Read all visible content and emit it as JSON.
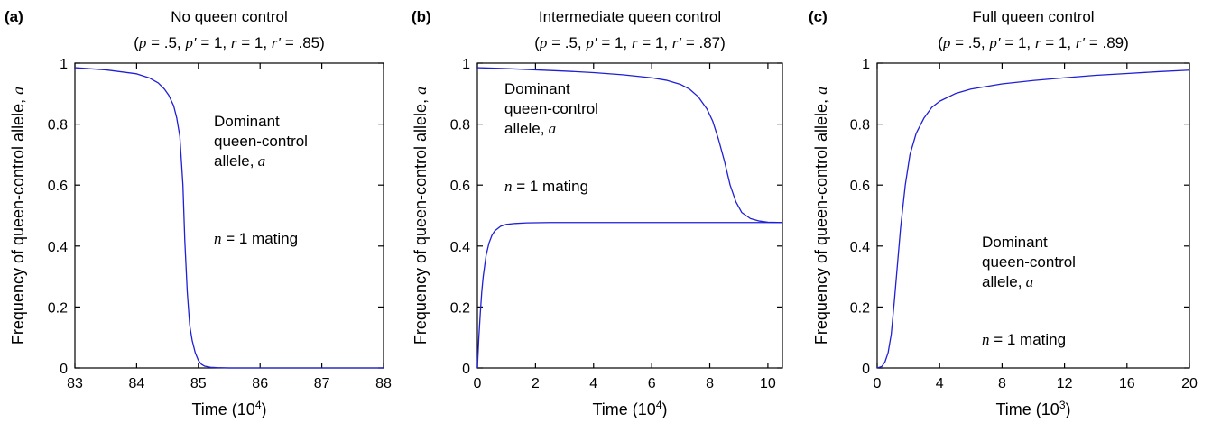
{
  "line_color": "#1f1fd6",
  "chart_data": [
    {
      "type": "line",
      "panel_label": "(a)",
      "title": "No queen control",
      "params": {
        "p": ".5",
        "p_prime": "1",
        "r": "1",
        "r_prime": ".85"
      },
      "xlabel": "Time (10",
      "xlabel_exp": "4",
      "ylabel": "Frequency of queen-control allele,",
      "ylabel_var": "a",
      "xlim": [
        83,
        88
      ],
      "ylim": [
        0,
        1
      ],
      "xticks": [
        83,
        84,
        85,
        86,
        87,
        88
      ],
      "yticks": [
        0,
        0.2,
        0.4,
        0.6,
        0.8,
        1
      ],
      "ytick_labels": [
        "0",
        "0.2",
        "0.4",
        "0.6",
        "0.8",
        "1"
      ],
      "annotation": [
        "Dominant",
        "queen-control",
        "allele,"
      ],
      "annotation_var": "a",
      "mating_label": "= 1 mating",
      "mating_var": "n",
      "series": [
        {
          "x": [
            83,
            83.5,
            84,
            84.2,
            84.35,
            84.45,
            84.52,
            84.6,
            84.65,
            84.7,
            84.75,
            84.78,
            84.82,
            84.86,
            84.9,
            84.95,
            85.0,
            85.05,
            85.1,
            85.2,
            85.3,
            85.5,
            86,
            87,
            88
          ],
          "y": [
            0.985,
            0.978,
            0.965,
            0.952,
            0.935,
            0.915,
            0.895,
            0.86,
            0.82,
            0.76,
            0.6,
            0.42,
            0.25,
            0.14,
            0.09,
            0.05,
            0.025,
            0.012,
            0.006,
            0.002,
            0.001,
            0,
            0,
            0,
            0
          ]
        }
      ]
    },
    {
      "type": "line",
      "panel_label": "(b)",
      "title": "Intermediate queen control",
      "params": {
        "p": ".5",
        "p_prime": "1",
        "r": "1",
        "r_prime": ".87"
      },
      "xlabel": "Time (10",
      "xlabel_exp": "4",
      "ylabel": "Frequency of queen-control allele,",
      "ylabel_var": "a",
      "xlim": [
        0,
        10.5
      ],
      "ylim": [
        0,
        1
      ],
      "xticks": [
        0,
        2,
        4,
        6,
        8,
        10
      ],
      "yticks": [
        0,
        0.2,
        0.4,
        0.6,
        0.8,
        1
      ],
      "ytick_labels": [
        "0",
        "0.2",
        "0.4",
        "0.6",
        "0.8",
        "1"
      ],
      "annotation": [
        "Dominant",
        "queen-control",
        "allele,"
      ],
      "annotation_var": "a",
      "mating_label": "= 1 mating",
      "mating_var": "n",
      "series": [
        {
          "x": [
            0,
            1,
            2,
            3,
            4,
            5,
            6,
            6.5,
            7,
            7.3,
            7.6,
            7.9,
            8.1,
            8.3,
            8.5,
            8.7,
            8.9,
            9.1,
            9.4,
            9.7,
            10,
            10.5
          ],
          "y": [
            0.985,
            0.982,
            0.978,
            0.974,
            0.969,
            0.962,
            0.952,
            0.944,
            0.93,
            0.915,
            0.89,
            0.85,
            0.81,
            0.75,
            0.68,
            0.6,
            0.545,
            0.51,
            0.49,
            0.482,
            0.478,
            0.477
          ]
        },
        {
          "x": [
            0,
            0.05,
            0.1,
            0.15,
            0.2,
            0.3,
            0.4,
            0.5,
            0.6,
            0.8,
            1.0,
            1.3,
            1.7,
            2.5,
            4,
            6,
            8,
            10.5
          ],
          "y": [
            0,
            0.1,
            0.18,
            0.25,
            0.3,
            0.37,
            0.41,
            0.435,
            0.45,
            0.465,
            0.471,
            0.474,
            0.476,
            0.477,
            0.477,
            0.477,
            0.477,
            0.477
          ]
        }
      ]
    },
    {
      "type": "line",
      "panel_label": "(c)",
      "title": "Full queen control",
      "params": {
        "p": ".5",
        "p_prime": "1",
        "r": "1",
        "r_prime": ".89"
      },
      "xlabel": "Time (10",
      "xlabel_exp": "3",
      "ylabel": "Frequency of queen-control allele,",
      "ylabel_var": "a",
      "xlim": [
        0,
        20
      ],
      "ylim": [
        0,
        1
      ],
      "xticks": [
        0,
        4,
        8,
        12,
        16,
        20
      ],
      "yticks": [
        0,
        0.2,
        0.4,
        0.6,
        0.8,
        1
      ],
      "ytick_labels": [
        "0",
        "0.2",
        "0.4",
        "0.6",
        "0.8",
        "1"
      ],
      "annotation": [
        "Dominant",
        "queen-control",
        "allele,"
      ],
      "annotation_var": "a",
      "mating_label": "= 1 mating",
      "mating_var": "n",
      "series": [
        {
          "x": [
            0,
            0.3,
            0.5,
            0.7,
            0.9,
            1.1,
            1.3,
            1.5,
            1.8,
            2.1,
            2.5,
            3,
            3.5,
            4,
            5,
            6,
            8,
            10,
            12,
            14,
            16,
            18,
            20
          ],
          "y": [
            0,
            0.005,
            0.02,
            0.05,
            0.11,
            0.22,
            0.34,
            0.46,
            0.6,
            0.7,
            0.77,
            0.82,
            0.855,
            0.875,
            0.9,
            0.915,
            0.932,
            0.943,
            0.952,
            0.96,
            0.966,
            0.972,
            0.977
          ]
        }
      ]
    }
  ]
}
